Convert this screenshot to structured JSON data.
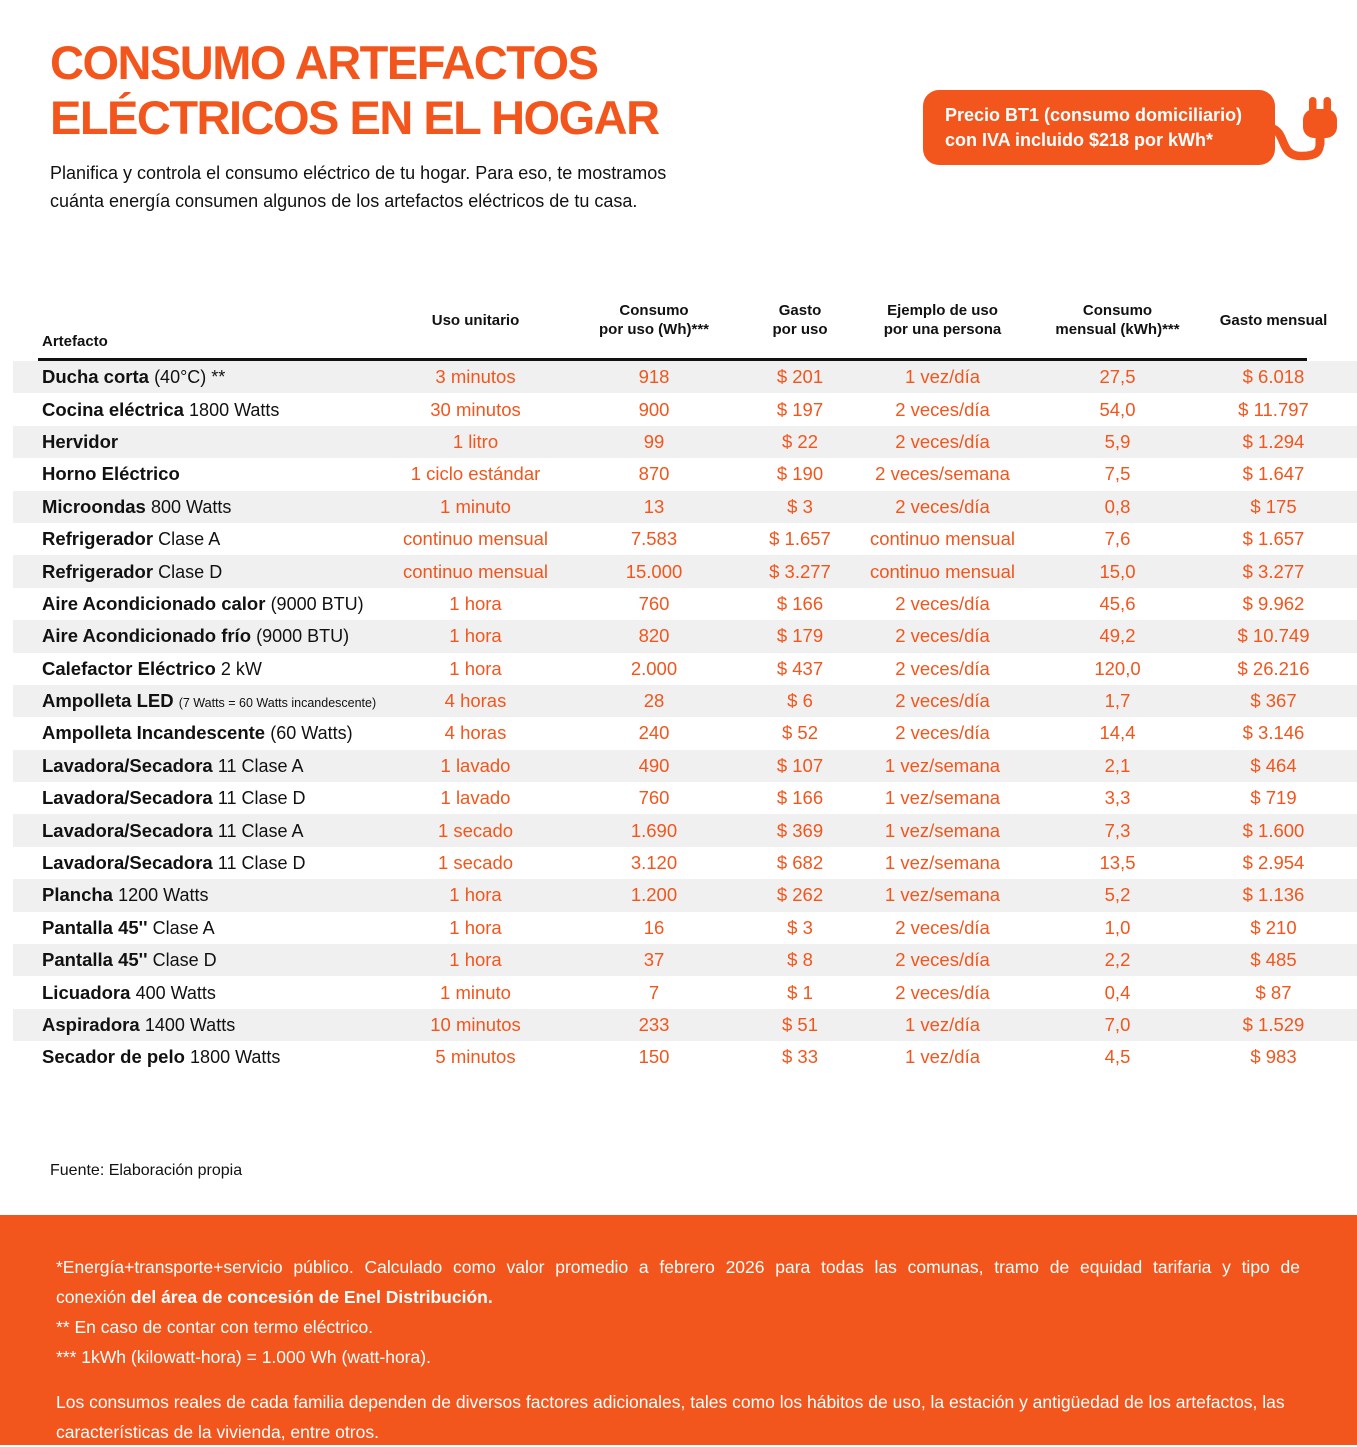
{
  "colors": {
    "accent": "#F2561D",
    "row_shade": "#F0F0F0",
    "text": "#111111",
    "badge_text": "#FFFFFF"
  },
  "header": {
    "title_line1": "CONSUMO ARTEFACTOS",
    "title_line2": "ELÉCTRICOS EN EL HOGAR",
    "subtitle_line1": "Planifica y controla el consumo eléctrico de tu hogar. Para eso, te mostramos",
    "subtitle_line2": "cuánta energía consumen algunos de los artefactos eléctricos de tu casa.",
    "badge_line1": "Precio BT1 (consumo domiciliario)",
    "badge_line2": "con IVA incluido $218 por kWh*",
    "badge_icon": "plug-icon"
  },
  "table": {
    "columns": [
      {
        "lines": [
          "Artefacto"
        ]
      },
      {
        "lines": [
          "Uso unitario"
        ]
      },
      {
        "lines": [
          "Consumo",
          "por uso (Wh)***"
        ]
      },
      {
        "lines": [
          "Gasto",
          "por uso"
        ]
      },
      {
        "lines": [
          "Ejemplo de uso",
          "por una persona"
        ]
      },
      {
        "lines": [
          "Consumo",
          "mensual (kWh)***"
        ]
      },
      {
        "lines": [
          "Gasto mensual"
        ]
      }
    ],
    "rows": [
      {
        "name": "Ducha corta",
        "suffix": "(40°C) **",
        "uso": "3 minutos",
        "consumo_uso": "918",
        "gasto_uso": "$ 201",
        "ejemplo": "1 vez/día",
        "consumo_mensual": "27,5",
        "gasto_mensual": "$ 6.018"
      },
      {
        "name": "Cocina eléctrica",
        "suffix": "1800 Watts",
        "uso": "30 minutos",
        "consumo_uso": "900",
        "gasto_uso": "$ 197",
        "ejemplo": "2 veces/día",
        "consumo_mensual": "54,0",
        "gasto_mensual": "$ 11.797"
      },
      {
        "name": "Hervidor",
        "suffix": "",
        "uso": "1 litro",
        "consumo_uso": "99",
        "gasto_uso": "$ 22",
        "ejemplo": "2 veces/día",
        "consumo_mensual": "5,9",
        "gasto_mensual": "$ 1.294"
      },
      {
        "name": "Horno Eléctrico",
        "suffix": "",
        "uso": "1 ciclo estándar",
        "consumo_uso": "870",
        "gasto_uso": "$ 190",
        "ejemplo": "2 veces/semana",
        "consumo_mensual": "7,5",
        "gasto_mensual": "$ 1.647"
      },
      {
        "name": "Microondas",
        "suffix": "800 Watts",
        "uso": "1 minuto",
        "consumo_uso": "13",
        "gasto_uso": "$ 3",
        "ejemplo": "2 veces/día",
        "consumo_mensual": "0,8",
        "gasto_mensual": "$ 175"
      },
      {
        "name": "Refrigerador",
        "suffix": "Clase A",
        "uso": "continuo mensual",
        "consumo_uso": "7.583",
        "gasto_uso": "$ 1.657",
        "ejemplo": "continuo mensual",
        "consumo_mensual": "7,6",
        "gasto_mensual": "$ 1.657"
      },
      {
        "name": "Refrigerador",
        "suffix": "Clase D",
        "uso": "continuo mensual",
        "consumo_uso": "15.000",
        "gasto_uso": "$ 3.277",
        "ejemplo": "continuo mensual",
        "consumo_mensual": "15,0",
        "gasto_mensual": "$ 3.277"
      },
      {
        "name": "Aire Acondicionado calor",
        "suffix": "(9000 BTU)",
        "uso": "1 hora",
        "consumo_uso": "760",
        "gasto_uso": "$ 166",
        "ejemplo": "2 veces/día",
        "consumo_mensual": "45,6",
        "gasto_mensual": "$ 9.962"
      },
      {
        "name": "Aire Acondicionado frío",
        "suffix": "(9000 BTU)",
        "uso": "1 hora",
        "consumo_uso": "820",
        "gasto_uso": "$ 179",
        "ejemplo": "2 veces/día",
        "consumo_mensual": "49,2",
        "gasto_mensual": "$ 10.749"
      },
      {
        "name": "Calefactor Eléctrico",
        "suffix": "2 kW",
        "uso": "1 hora",
        "consumo_uso": "2.000",
        "gasto_uso": "$ 437",
        "ejemplo": "2 veces/día",
        "consumo_mensual": "120,0",
        "gasto_mensual": "$ 26.216"
      },
      {
        "name": "Ampolleta LED",
        "suffix": "(7 Watts = 60 Watts incandescente)",
        "suffix_small": true,
        "uso": "4 horas",
        "consumo_uso": "28",
        "gasto_uso": "$ 6",
        "ejemplo": "2 veces/día",
        "consumo_mensual": "1,7",
        "gasto_mensual": "$ 367"
      },
      {
        "name": "Ampolleta Incandescente",
        "suffix": "(60 Watts)",
        "uso": "4 horas",
        "consumo_uso": "240",
        "gasto_uso": "$ 52",
        "ejemplo": "2 veces/día",
        "consumo_mensual": "14,4",
        "gasto_mensual": "$ 3.146"
      },
      {
        "name": "Lavadora/Secadora",
        "suffix": "11 Clase A",
        "uso": "1 lavado",
        "consumo_uso": "490",
        "gasto_uso": "$ 107",
        "ejemplo": "1 vez/semana",
        "consumo_mensual": "2,1",
        "gasto_mensual": "$ 464"
      },
      {
        "name": "Lavadora/Secadora",
        "suffix": "11 Clase D",
        "uso": "1 lavado",
        "consumo_uso": "760",
        "gasto_uso": "$ 166",
        "ejemplo": "1 vez/semana",
        "consumo_mensual": "3,3",
        "gasto_mensual": "$ 719"
      },
      {
        "name": "Lavadora/Secadora",
        "suffix": "11 Clase A",
        "uso": "1 secado",
        "consumo_uso": "1.690",
        "gasto_uso": "$ 369",
        "ejemplo": "1 vez/semana",
        "consumo_mensual": "7,3",
        "gasto_mensual": "$ 1.600"
      },
      {
        "name": "Lavadora/Secadora",
        "suffix": "11 Clase D",
        "uso": "1 secado",
        "consumo_uso": "3.120",
        "gasto_uso": "$ 682",
        "ejemplo": "1 vez/semana",
        "consumo_mensual": "13,5",
        "gasto_mensual": "$ 2.954"
      },
      {
        "name": "Plancha",
        "suffix": "1200 Watts",
        "uso": "1 hora",
        "consumo_uso": "1.200",
        "gasto_uso": "$ 262",
        "ejemplo": "1 vez/semana",
        "consumo_mensual": "5,2",
        "gasto_mensual": "$ 1.136"
      },
      {
        "name": "Pantalla 45''",
        "suffix": "Clase A",
        "uso": "1 hora",
        "consumo_uso": "16",
        "gasto_uso": "$ 3",
        "ejemplo": "2 veces/día",
        "consumo_mensual": "1,0",
        "gasto_mensual": "$ 210"
      },
      {
        "name": "Pantalla 45''",
        "suffix": "Clase D",
        "uso": "1 hora",
        "consumo_uso": "37",
        "gasto_uso": "$ 8",
        "ejemplo": "2 veces/día",
        "consumo_mensual": "2,2",
        "gasto_mensual": "$ 485"
      },
      {
        "name": "Licuadora",
        "suffix": "400 Watts",
        "uso": "1 minuto",
        "consumo_uso": "7",
        "gasto_uso": "$ 1",
        "ejemplo": "2 veces/día",
        "consumo_mensual": "0,4",
        "gasto_mensual": "$ 87"
      },
      {
        "name": "Aspiradora",
        "suffix": "1400 Watts",
        "uso": "10 minutos",
        "consumo_uso": "233",
        "gasto_uso": "$ 51",
        "ejemplo": "1 vez/día",
        "consumo_mensual": "7,0",
        "gasto_mensual": "$ 1.529"
      },
      {
        "name": "Secador de pelo",
        "suffix": "1800 Watts",
        "uso": "5 minutos",
        "consumo_uso": "150",
        "gasto_uso": "$ 33",
        "ejemplo": "1 vez/día",
        "consumo_mensual": "4,5",
        "gasto_mensual": "$ 983"
      }
    ]
  },
  "source": "Fuente: Elaboración propia",
  "footer": {
    "note1_line1": "*Energía+transporte+servicio público.  Calculado como valor promedio a febrero 2026 para todas las comunas, tramo de equidad tarifaria y tipo de",
    "note1_line2_prefix": "conexión ",
    "note1_line2_bold": "del área de concesión de Enel Distribución.",
    "note2": "** En caso de contar con termo eléctrico.",
    "note3": "*** 1kWh (kilowatt-hora) = 1.000 Wh (watt-hora).",
    "disclaimer": "Los consumos reales de cada familia dependen de diversos factores adicionales, tales como los hábitos de uso, la estación y antigüedad de los artefactos, las características de la vivienda, entre otros."
  }
}
